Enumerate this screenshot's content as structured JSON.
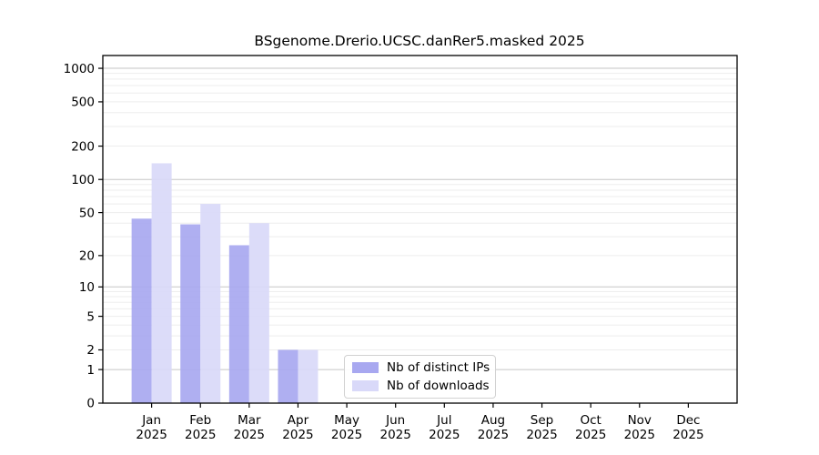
{
  "chart_data": {
    "type": "bar",
    "title": "BSgenome.Drerio.UCSC.danRer5.masked 2025",
    "categories": [
      "Jan",
      "Feb",
      "Mar",
      "Apr",
      "May",
      "Jun",
      "Jul",
      "Aug",
      "Sep",
      "Oct",
      "Nov",
      "Dec"
    ],
    "category_year": "2025",
    "series": [
      {
        "name": "Nb of distinct IPs",
        "color": "#a8a8f0",
        "values": [
          44,
          39,
          25,
          2,
          0,
          0,
          0,
          0,
          0,
          0,
          0,
          0
        ]
      },
      {
        "name": "Nb of downloads",
        "color": "#d9d9f9",
        "values": [
          140,
          60,
          40,
          2,
          0,
          0,
          0,
          0,
          0,
          0,
          0,
          0
        ]
      }
    ],
    "y_ticks": [
      0,
      1,
      2,
      5,
      10,
      20,
      50,
      100,
      200,
      500,
      1000
    ],
    "y_scale": "log10(1+x)",
    "ylim": [
      0,
      1400
    ],
    "grid": "horizontal; minor lines light gray, decade lines darker",
    "legend_position": "inside-bottom-center",
    "colors": {
      "axis": "#000000",
      "major_grid": "#c6c6c6",
      "minor_grid": "#ededed",
      "text": "#000000"
    }
  }
}
